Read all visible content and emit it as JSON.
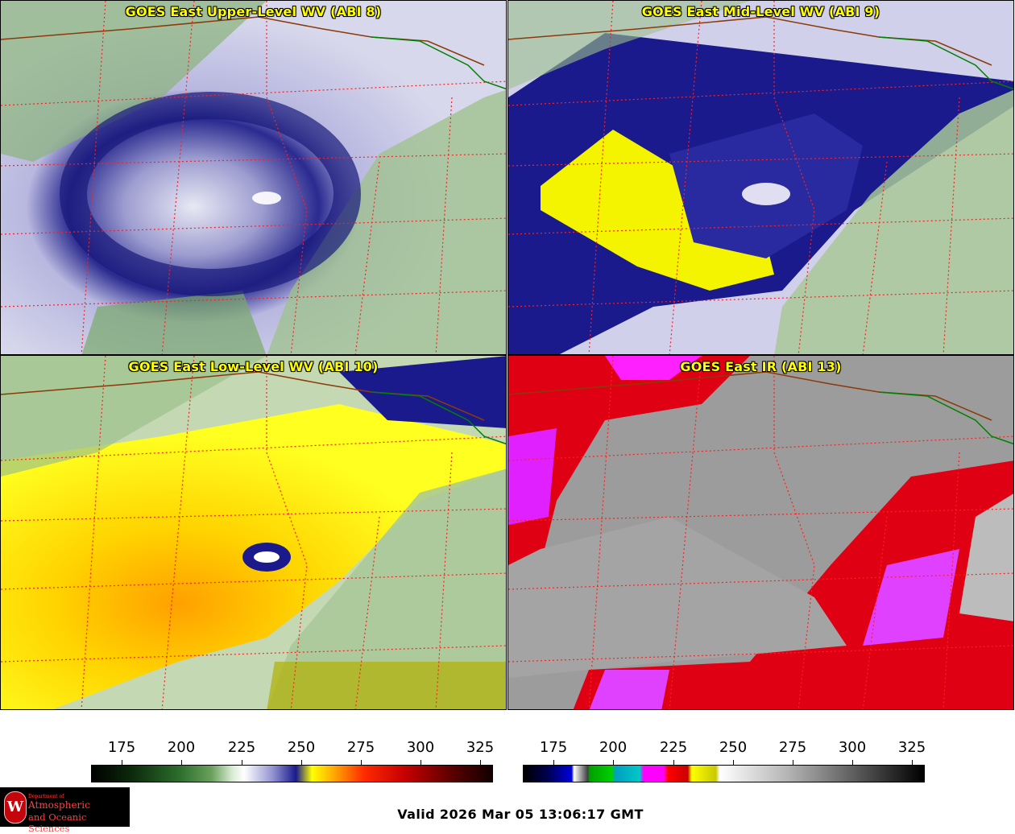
{
  "panels": [
    {
      "title": "GOES East Upper-Level WV (ABI 8)"
    },
    {
      "title": "GOES East Mid-Level WV (ABI 9)"
    },
    {
      "title": "GOES East Low-Level WV (ABI 10)"
    },
    {
      "title": "GOES East IR (ABI 13)"
    }
  ],
  "colorbars": [
    {
      "ticks": [
        "175",
        "200",
        "225",
        "250",
        "275",
        "300",
        "325"
      ]
    },
    {
      "ticks": [
        "175",
        "200",
        "225",
        "250",
        "275",
        "300",
        "325"
      ]
    }
  ],
  "logo": {
    "department": "Department of",
    "line1": "Atmospheric",
    "line2": "and Oceanic Sciences",
    "emblem": "W"
  },
  "footer": {
    "valid": "Valid 2026 Mar 05 13:06:17 GMT"
  },
  "colors": {
    "title": "#ffff00",
    "state_lines": "#ff2020",
    "border_lines": "#8b3a0a",
    "intl_border": "#008000"
  }
}
